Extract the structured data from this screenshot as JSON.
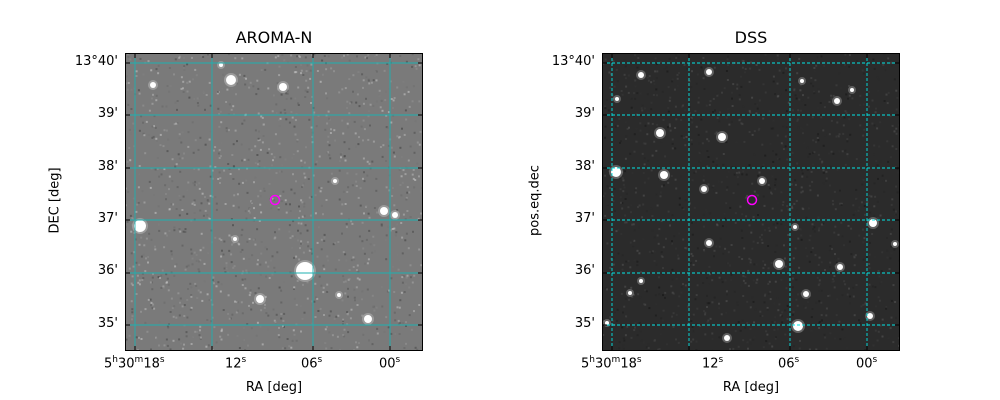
{
  "panels": [
    {
      "title": "AROMA-N",
      "xlabel": "RA [deg]",
      "ylabel": "DEC [deg]",
      "background": "#7a7a7a",
      "marker_color": "#ff00ff",
      "grid_color": "#1fb0b0"
    },
    {
      "title": "DSS",
      "xlabel": "RA [deg]",
      "ylabel": "pos.eq.dec",
      "background": "#2b2b2b",
      "marker_color": "#ff00ff",
      "grid_color": "#00e5e5"
    }
  ],
  "y_ticks": [
    "13°40'",
    "39'",
    "38'",
    "37'",
    "36'",
    "35'"
  ],
  "x_ticks": [
    {
      "main": "5",
      "sup1": "h",
      "mid": "30",
      "sup2": "m",
      "tail": "18",
      "sup3": "s"
    },
    {
      "main": "12",
      "sup1": "s"
    },
    {
      "main": "06",
      "sup1": "s"
    },
    {
      "main": "00",
      "sup1": "s"
    }
  ]
}
